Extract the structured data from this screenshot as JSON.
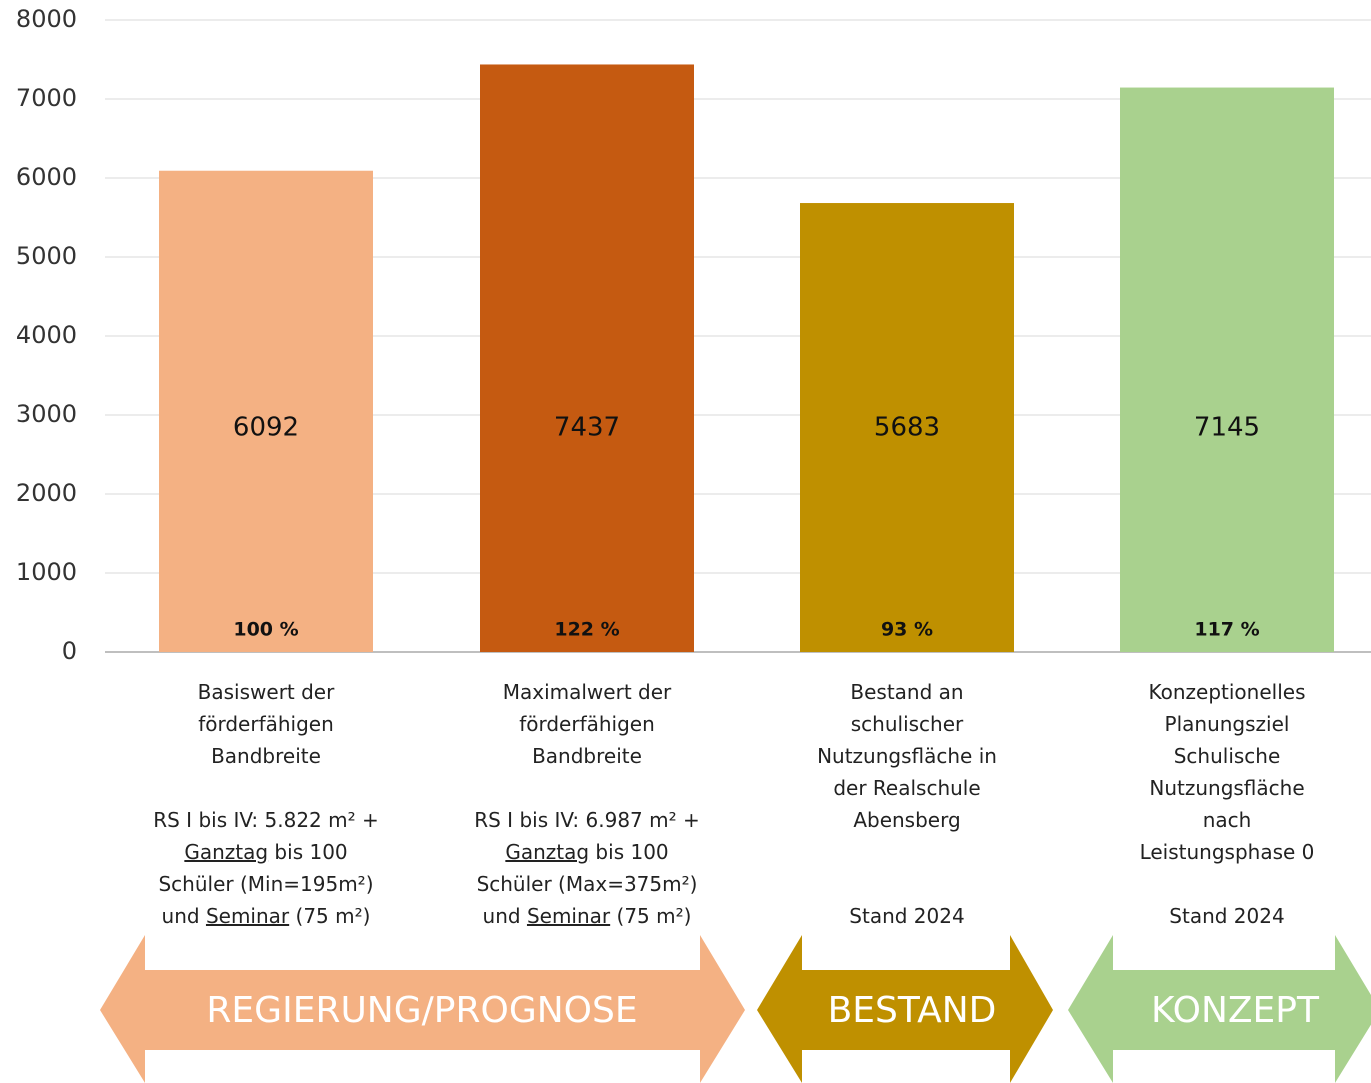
{
  "chart_data": {
    "type": "bar",
    "categories": [
      "Basiswert der förderfähigen Bandbreite",
      "Maximalwert der förderfähigen Bandbreite",
      "Bestand an schulischer Nutzungsfläche in der Realschule Abensberg",
      "Konzeptionelles Planungsziel Schulische Nutzungsfläche nach Leistungsphase 0"
    ],
    "notes": [
      [
        {
          "text": "RS I bis IV: 5.822 m² + "
        },
        {
          "text": "Ganztag",
          "underline": true
        },
        {
          "text": " bis 100 Schüler (Min=195m²) und "
        },
        {
          "text": "Seminar",
          "underline": true
        },
        {
          "text": " (75 m²)"
        }
      ],
      [
        {
          "text": "RS I bis IV: 6.987 m² + "
        },
        {
          "text": "Ganztag",
          "underline": true
        },
        {
          "text": " bis 100 Schüler (Max=375m²) und "
        },
        {
          "text": "Seminar",
          "underline": true
        },
        {
          "text": " (75 m²)"
        }
      ],
      [
        {
          "text": "Stand 2024"
        }
      ],
      [
        {
          "text": "Stand 2024"
        }
      ]
    ],
    "values": [
      6092,
      7437,
      5683,
      7145
    ],
    "colors": [
      "#f4b183",
      "#c55a11",
      "#bf9000",
      "#a9d18e"
    ],
    "shares": [
      100,
      122,
      93,
      117
    ],
    "share_labels": [
      "100 %",
      "122 %",
      "93 %",
      "117 %"
    ],
    "ylim": [
      0,
      8000
    ],
    "yticks": [
      0,
      1000,
      2000,
      3000,
      4000,
      5000,
      6000,
      7000,
      8000
    ],
    "grid": true,
    "bands": [
      "REGIERUNG/PROGNOSE",
      "BESTAND",
      "KONZEPT"
    ]
  }
}
